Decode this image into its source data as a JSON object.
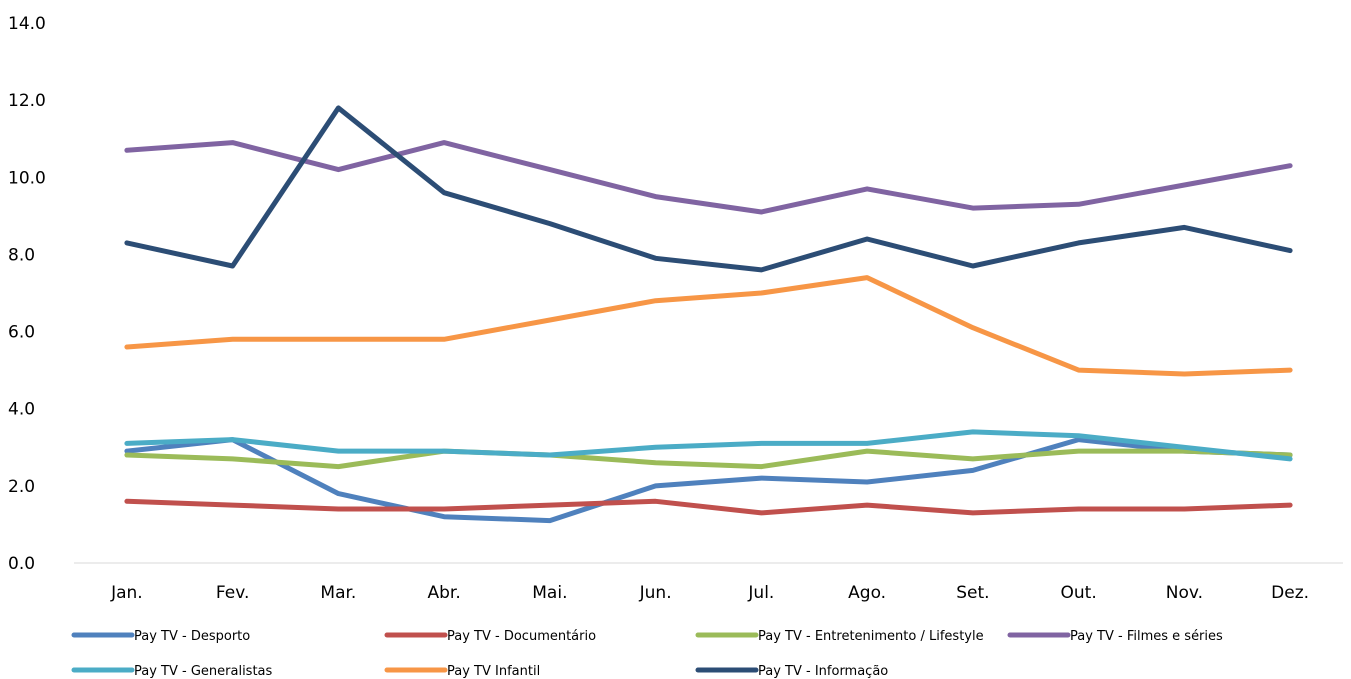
{
  "chart_data": {
    "type": "line",
    "categories": [
      "Jan.",
      "Fev.",
      "Mar.",
      "Abr.",
      "Mai.",
      "Jun.",
      "Jul.",
      "Ago.",
      "Set.",
      "Out.",
      "Nov.",
      "Dez."
    ],
    "ylim": [
      0,
      14
    ],
    "yticks": [
      "0.0",
      "2.0",
      "4.0",
      "6.0",
      "8.0",
      "10.0",
      "12.0",
      "14.0"
    ],
    "grid": false,
    "legend_position": "bottom",
    "series": [
      {
        "name": "Pay TV - Desporto",
        "color": "#4f81bd",
        "values": [
          2.9,
          3.2,
          1.8,
          1.2,
          1.1,
          2.0,
          2.2,
          2.1,
          2.4,
          3.2,
          2.9,
          2.8
        ]
      },
      {
        "name": "Pay TV - Documentário",
        "color": "#c0504d",
        "values": [
          1.6,
          1.5,
          1.4,
          1.4,
          1.5,
          1.6,
          1.3,
          1.5,
          1.3,
          1.4,
          1.4,
          1.5
        ]
      },
      {
        "name": "Pay TV - Entretenimento / Lifestyle",
        "color": "#9bbb59",
        "values": [
          2.8,
          2.7,
          2.5,
          2.9,
          2.8,
          2.6,
          2.5,
          2.9,
          2.7,
          2.9,
          2.9,
          2.8
        ]
      },
      {
        "name": "Pay TV - Filmes e séries",
        "color": "#8064a2",
        "values": [
          10.7,
          10.9,
          10.2,
          10.9,
          10.2,
          9.5,
          9.1,
          9.7,
          9.2,
          9.3,
          9.8,
          10.3
        ]
      },
      {
        "name": "Pay TV - Generalistas",
        "color": "#4bacc6",
        "values": [
          3.1,
          3.2,
          2.9,
          2.9,
          2.8,
          3.0,
          3.1,
          3.1,
          3.4,
          3.3,
          3.0,
          2.7
        ]
      },
      {
        "name": "Pay TV Infantil",
        "color": "#f79646",
        "values": [
          5.6,
          5.8,
          5.8,
          5.8,
          6.3,
          6.8,
          7.0,
          7.4,
          6.1,
          5.0,
          4.9,
          5.0
        ]
      },
      {
        "name": "Pay TV - Informação",
        "color": "#2c4d75",
        "values": [
          8.3,
          7.7,
          11.8,
          9.6,
          8.8,
          7.9,
          7.6,
          8.4,
          7.7,
          8.3,
          8.7,
          8.1
        ]
      }
    ]
  }
}
